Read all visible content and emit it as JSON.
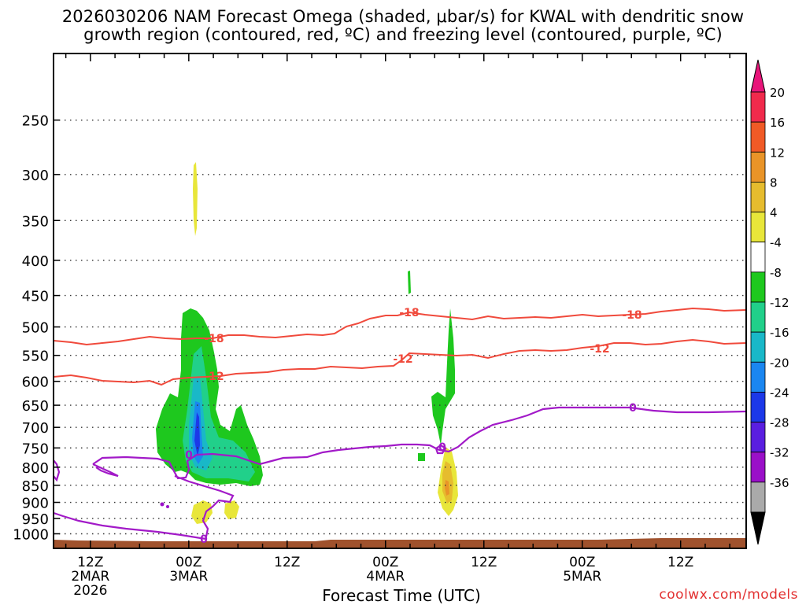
{
  "title_line1": "2026030206 NAM Forecast Omega (shaded, μbar/s) for KWAL with dendritic snow",
  "title_line2": "growth region (contoured, red, ºC) and freezing level (contoured, purple, ºC)",
  "credit": "coolwx.com/models",
  "chart_data": {
    "type": "contour",
    "xlabel": "Forecast Time (UTC)",
    "ylabel": "",
    "y_ticks": [
      "250",
      "300",
      "350",
      "400",
      "450",
      "500",
      "550",
      "600",
      "650",
      "700",
      "750",
      "800",
      "850",
      "900",
      "950",
      "1000"
    ],
    "x_ticks": [
      {
        "hour": 6,
        "label": "12Z",
        "date": "2MAR",
        "year": "2026"
      },
      {
        "hour": 18,
        "label": "00Z",
        "date": "3MAR",
        "year": ""
      },
      {
        "hour": 30,
        "label": "12Z",
        "date": "",
        "year": ""
      },
      {
        "hour": 42,
        "label": "00Z",
        "date": "4MAR",
        "year": ""
      },
      {
        "hour": 54,
        "label": "12Z",
        "date": "",
        "year": ""
      },
      {
        "hour": 66,
        "label": "00Z",
        "date": "5MAR",
        "year": ""
      },
      {
        "hour": 78,
        "label": "12Z",
        "date": "",
        "year": ""
      }
    ],
    "colorbar": {
      "labels": [
        "20",
        "16",
        "12",
        "8",
        "4",
        "-4",
        "-8",
        "-12",
        "-16",
        "-20",
        "-24",
        "-28",
        "-32",
        "-36"
      ],
      "colors": [
        "#f02a4c",
        "#f05a26",
        "#e99428",
        "#e6bc2e",
        "#e8e63a",
        "#ffffff",
        "#1ec81e",
        "#21d08a",
        "#19b8c8",
        "#1a86f0",
        "#1c38e8",
        "#5a1ee0",
        "#9a10c8",
        "#aaaaaa"
      ],
      "top_color": "#e8157a",
      "bottom_color": "#000000"
    },
    "contours": {
      "dgz_color": "#f04a3c",
      "freezing_color": "#a21ac8",
      "labels": [
        {
          "series": "-18C",
          "text": "-18"
        },
        {
          "series": "-18C",
          "text": "-18"
        },
        {
          "series": "-18C",
          "text": "-18"
        },
        {
          "series": "-12C",
          "text": "-12"
        },
        {
          "series": "-12C",
          "text": "-12"
        },
        {
          "series": "-12C",
          "text": "-12"
        },
        {
          "series": "0C",
          "text": "0"
        },
        {
          "series": "0C",
          "text": "0"
        },
        {
          "series": "0C",
          "text": "0"
        },
        {
          "series": "0C",
          "text": "0"
        }
      ]
    },
    "terrain_color": "#a0522d"
  }
}
